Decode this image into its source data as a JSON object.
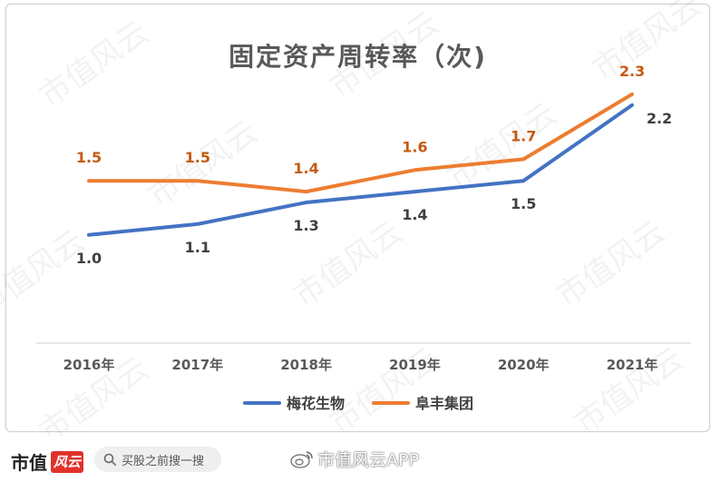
{
  "watermark_text": "市值风云",
  "footer": {
    "brand_text": "市值",
    "brand_logo_text": "风云",
    "search_text": "买股之前搜一搜",
    "weibo_text": "市值风云APP"
  },
  "colors": {
    "series_blue": "#4472C4",
    "series_orange": "#ED7D31",
    "label_dark": "#404040",
    "label_orange": "#C55A11"
  },
  "chart_data": {
    "type": "line",
    "title": "固定资产周转率（次)",
    "categories": [
      "2016年",
      "2017年",
      "2018年",
      "2019年",
      "2020年",
      "2021年"
    ],
    "ylim": [
      0,
      2.5
    ],
    "grid": false,
    "legend_position": "bottom",
    "series": [
      {
        "name": "梅花生物",
        "color": "#4472C4",
        "values": [
          1.0,
          1.1,
          1.3,
          1.4,
          1.5,
          2.2
        ],
        "labels": [
          "1.0",
          "1.1",
          "1.3",
          "1.4",
          "1.5",
          "2.2"
        ]
      },
      {
        "name": "阜丰集团",
        "color": "#ED7D31",
        "values": [
          1.5,
          1.5,
          1.4,
          1.6,
          1.7,
          2.3
        ],
        "labels": [
          "1.5",
          "1.5",
          "1.4",
          "1.6",
          "1.7",
          "2.3"
        ]
      }
    ]
  }
}
